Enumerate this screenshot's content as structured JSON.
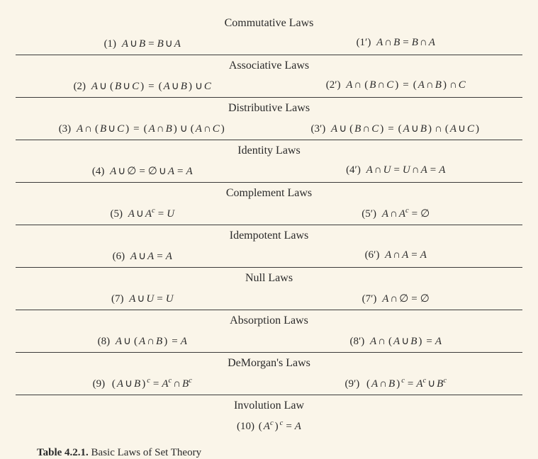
{
  "background_color": "#faf5e9",
  "text_color": "#2a2a2a",
  "rule_color": "#3a3a3a",
  "font_family": "Georgia, Times New Roman, serif",
  "title_fontsize": 16,
  "body_fontsize": 15,
  "symbols": {
    "union": "∪",
    "intersect": "∩",
    "eq": "=",
    "empty": "∅",
    "complement_sup": "c",
    "prime": "′"
  },
  "sections": [
    {
      "title": "Commutative Laws",
      "left": {
        "num": "(1)",
        "expr": "A ∪ B = B ∪ A"
      },
      "right": {
        "num": "(1′)",
        "expr": "A ∩ B = B ∩ A"
      }
    },
    {
      "title": "Associative Laws",
      "left": {
        "num": "(2)",
        "expr": "A ∪ (B ∪ C) = (A ∪ B) ∪ C"
      },
      "right": {
        "num": "(2′)",
        "expr": "A ∩ (B ∩ C) = (A ∩ B) ∩ C"
      }
    },
    {
      "title": "Distributive Laws",
      "left": {
        "num": "(3)",
        "expr": "A ∩ (B ∪ C) = (A ∩ B) ∪ (A ∩ C)"
      },
      "right": {
        "num": "(3′)",
        "expr": "A ∪ (B ∩ C) = (A ∪ B) ∩ (A ∪ C)"
      }
    },
    {
      "title": "Identity Laws",
      "left": {
        "num": "(4)",
        "expr": "A ∪ ∅ = ∅ ∪ A = A"
      },
      "right": {
        "num": "(4′)",
        "expr": "A ∩ U = U ∩ A = A"
      }
    },
    {
      "title": "Complement Laws",
      "left": {
        "num": "(5)",
        "expr": "A ∪ Aᶜ = U"
      },
      "right": {
        "num": "(5′)",
        "expr": "A ∩ Aᶜ = ∅"
      }
    },
    {
      "title": "Idempotent Laws",
      "left": {
        "num": "(6)",
        "expr": "A ∪ A = A"
      },
      "right": {
        "num": "(6′)",
        "expr": "A ∩ A = A"
      }
    },
    {
      "title": "Null Laws",
      "left": {
        "num": "(7)",
        "expr": "A ∪ U = U"
      },
      "right": {
        "num": "(7′)",
        "expr": "A ∩ ∅ = ∅"
      }
    },
    {
      "title": "Absorption Laws",
      "left": {
        "num": "(8)",
        "expr": "A ∪ (A ∩ B) = A"
      },
      "right": {
        "num": "(8′)",
        "expr": "A ∩ (A ∪ B) = A"
      }
    },
    {
      "title": "DeMorgan's Laws",
      "left": {
        "num": "(9)",
        "expr": "(A ∪ B)ᶜ = Aᶜ ∩ Bᶜ"
      },
      "right": {
        "num": "(9′)",
        "expr": "(A ∩ B)ᶜ = Aᶜ ∪ Bᶜ"
      }
    },
    {
      "title": "Involution Law",
      "center": {
        "num": "(10)",
        "expr": "(Aᶜ)ᶜ = A"
      }
    }
  ],
  "caption": {
    "label": "Table 4.2.1.",
    "text": "Basic Laws of Set Theory"
  }
}
